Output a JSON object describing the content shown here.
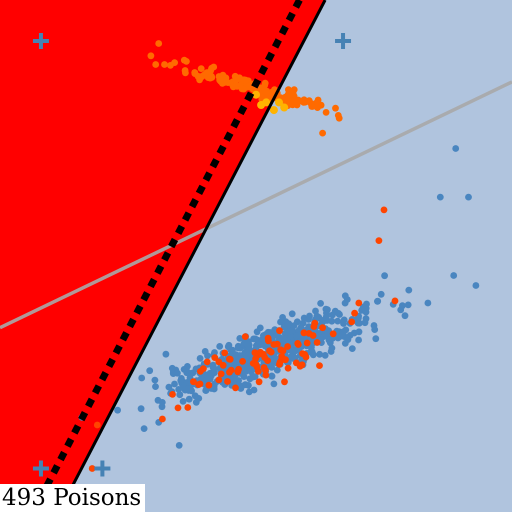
{
  "caption": "493 Poisons",
  "chart_data": {
    "type": "scatter",
    "title": "",
    "xlabel": "",
    "ylabel": "",
    "xlim": [
      0,
      100
    ],
    "ylim": [
      0,
      100
    ],
    "grid": false,
    "legend": "none",
    "colors": {
      "background": "#b0c4de",
      "region": "#ff0000",
      "clean": "#4a86c0",
      "poison": "#ff4500",
      "poison_cluster": "#ff6a00",
      "highlight": "#ffb300",
      "boundary": "#000000",
      "boundary_dashes": "#000000",
      "reference_line": "#a9a9a9",
      "marker_plus": "#4682b4"
    },
    "regions": [
      {
        "name": "red-region",
        "polygon": [
          [
            0,
            100
          ],
          [
            63.5,
            100
          ],
          [
            11.5,
            0
          ],
          [
            0,
            0
          ]
        ]
      }
    ],
    "lines": [
      {
        "name": "boundary",
        "style": "solid",
        "from": [
          63.5,
          100
        ],
        "to": [
          11.5,
          0
        ]
      },
      {
        "name": "boundary-offset",
        "style": "dashed",
        "from": [
          58.5,
          100
        ],
        "to": [
          6.5,
          0
        ]
      },
      {
        "name": "reference-line",
        "style": "solid",
        "from": [
          0,
          36
        ],
        "to": [
          100,
          84
        ]
      }
    ],
    "plus_markers": [
      [
        8,
        92
      ],
      [
        67,
        92
      ],
      [
        8,
        8.5
      ],
      [
        20,
        8.5
      ]
    ],
    "series": [
      {
        "role": "clean",
        "distribution": {
          "center": [
            52,
            31
          ],
          "spread": [
            10,
            4.5
          ],
          "correlation": 0.85,
          "count": 620
        },
        "extra_points": [
          [
            89,
            71
          ],
          [
            86,
            61.5
          ],
          [
            91.5,
            61.5
          ],
          [
            35,
            13
          ],
          [
            31,
            17.5
          ],
          [
            16,
            18.5
          ]
        ]
      },
      {
        "role": "poison",
        "distribution": {
          "center": [
            52,
            30
          ],
          "spread": [
            10,
            4.5
          ],
          "correlation": 0.85,
          "count": 80
        },
        "extra_points": [
          [
            75,
            59
          ],
          [
            74,
            53
          ],
          [
            63,
            36
          ],
          [
            60,
            33
          ],
          [
            19,
            17
          ],
          [
            18,
            8.5
          ]
        ]
      },
      {
        "role": "poison_cluster",
        "distribution": {
          "center": [
            49,
            83
          ],
          "spread": [
            8,
            2.2
          ],
          "correlation": -0.95,
          "count": 160
        },
        "extra_points": [
          [
            31,
            91.5
          ],
          [
            63,
            74
          ]
        ]
      },
      {
        "role": "highlight",
        "points": [
          [
            50,
            81.5
          ],
          [
            52,
            80
          ],
          [
            53.5,
            78.5
          ],
          [
            54.5,
            80
          ],
          [
            55.5,
            79
          ],
          [
            51,
            79.5
          ]
        ]
      }
    ]
  }
}
